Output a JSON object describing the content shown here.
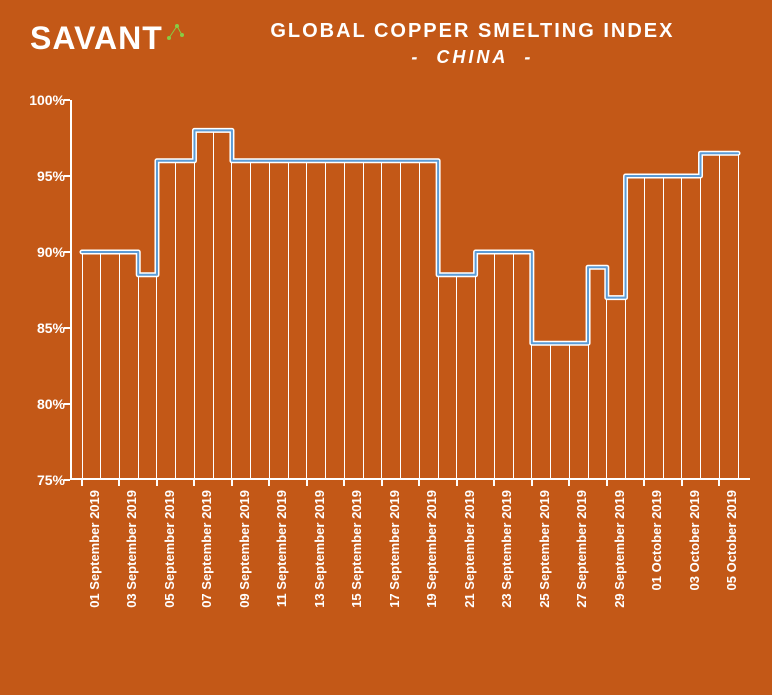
{
  "logo": "SAVANT",
  "title": "GLOBAL COPPER SMELTING INDEX",
  "subtitle": "CHINA",
  "chart": {
    "type": "bar-line",
    "background_color": "#c35817",
    "line_color": "#ffffff",
    "line_inner_color": "#5b9bd5",
    "line_width": 5,
    "bar_color": "#ffffff",
    "bar_width": 1,
    "text_color": "#ffffff",
    "ylim": [
      75,
      100
    ],
    "ytick_step": 5,
    "y_suffix": "%",
    "label_fontsize": 14,
    "xlabel_fontsize": 13,
    "xlabel_rotation": -90,
    "dates": [
      "01 September 2019",
      "03 September 2019",
      "05 September 2019",
      "07 September 2019",
      "09 September 2019",
      "11 September 2019",
      "13 September 2019",
      "15 September 2019",
      "17 September 2019",
      "19 September 2019",
      "21 September 2019",
      "23 September 2019",
      "25 September 2019",
      "27 September 2019",
      "29 September 2019",
      "01 October 2019",
      "03 October 2019",
      "05 October 2019"
    ],
    "values": [
      90,
      90,
      90,
      88.5,
      96,
      96,
      98,
      98,
      96,
      96,
      96,
      96,
      96,
      96,
      96,
      96,
      96,
      96,
      96,
      88.5,
      88.5,
      90,
      90,
      90,
      84,
      84,
      84,
      89,
      87,
      95,
      95,
      95,
      95,
      96.5,
      96.5,
      96.5
    ]
  }
}
